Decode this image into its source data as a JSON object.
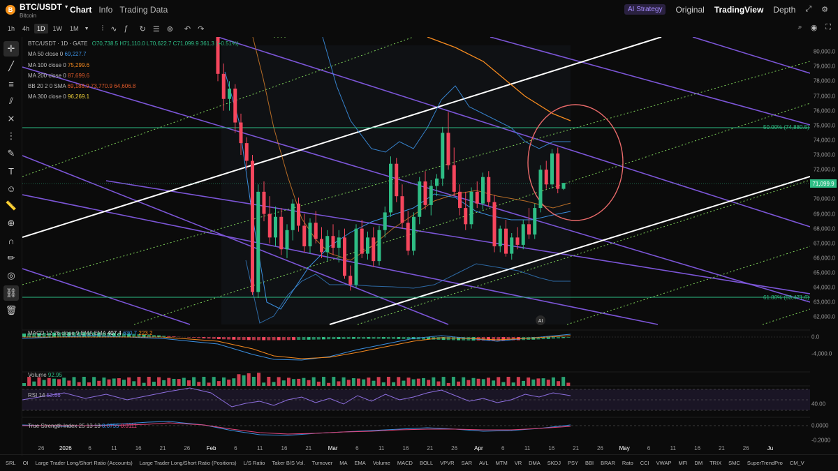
{
  "header": {
    "coin_symbol": "B",
    "pair": "BTC/USDT",
    "pair_sub": "Bitcoin",
    "tabs": [
      "Chart",
      "Info",
      "Trading Data"
    ],
    "ai_strategy": "AI Strategy",
    "right_tabs": [
      "Original",
      "TradingView",
      "Depth"
    ]
  },
  "toolbar": {
    "timeframes": [
      "1h",
      "4h",
      "1D",
      "1W",
      "1M"
    ],
    "active_timeframe": "1D"
  },
  "legend": {
    "ohlc_title": "BTC/USDT · 1D · GATE",
    "ohlc_values": "O70,738.5  H71,110.0  L70,622.7  C71,099.9  361.3 (+0.51%)",
    "lines": [
      {
        "name": "MA 50 close 0",
        "value": "69,227.7",
        "color": "#3b8fe0"
      },
      {
        "name": "MA 100 close 0",
        "value": "75,299.6",
        "color": "#f58a1f"
      },
      {
        "name": "MA 200 close 0",
        "value": "87,699.6",
        "color": "#e05a2a"
      },
      {
        "name": "BB 20 2 0 SMA",
        "value": "69,188.9  73,770.9  64,606.8",
        "color": "#e05a2a"
      },
      {
        "name": "MA 300 close 0",
        "value": "96,269.1",
        "color": "#f2d33a"
      }
    ]
  },
  "price_axis": [
    "80,000.0",
    "79,000.0",
    "78,000.0",
    "77,000.0",
    "76,000.0",
    "75,000.0",
    "74,000.0",
    "73,000.0",
    "72,000.0",
    "71,000.0",
    "70,000.0",
    "69,000.0",
    "68,000.0",
    "67,000.0",
    "66,000.0",
    "65,000.0",
    "64,000.0",
    "63,000.0",
    "62,000.0"
  ],
  "last_price": "71,099.9",
  "fib": {
    "level_50": "50.00% (74,880.5)",
    "level_618": "61.80% (63,471.6)"
  },
  "macd": {
    "label": "MACD 12 26 close 9 EMA EMA",
    "values": [
      "407.4",
      "630.7",
      "223.2"
    ],
    "axis": [
      "0.0",
      "-4,000.0"
    ]
  },
  "volume": {
    "label": "Volume",
    "value": "92.95"
  },
  "rsi": {
    "label": "RSI 14",
    "value": "53.86",
    "axis": [
      "40.00"
    ]
  },
  "tsi": {
    "label": "True Strength Index 25 13 13",
    "values": [
      "0.0755",
      "0.0111"
    ],
    "axis": [
      "0.0000",
      "-0.2000"
    ]
  },
  "time_axis": [
    "26",
    "2026",
    "6",
    "11",
    "16",
    "21",
    "26",
    "Feb",
    "6",
    "11",
    "16",
    "21",
    "Mar",
    "6",
    "11",
    "16",
    "21",
    "26",
    "Apr",
    "6",
    "11",
    "16",
    "21",
    "26",
    "May",
    "6",
    "11",
    "16",
    "21",
    "26",
    "Ju"
  ],
  "bottom_indicators": [
    "SRL",
    "OI",
    "Large Trader Long/Short Ratio (Accounts)",
    "Large Trader Long/Short Ratio (Positions)",
    "L/S Ratio",
    "Taker B/S Vol.",
    "Turnover",
    "MA",
    "EMA",
    "Volume",
    "MACD",
    "BOLL",
    "VPVR",
    "SAR",
    "AVL",
    "MTM",
    "VR",
    "DMA",
    "SKDJ",
    "PSY",
    "BBI",
    "BRAR",
    "Rato",
    "CCI",
    "VWAP",
    "MFI",
    "DM",
    "TRIX",
    "SMC",
    "SuperTrendPro",
    "CM_V"
  ],
  "chart_data": {
    "type": "candlestick",
    "symbol": "BTC/USDT",
    "timeframe": "1D",
    "ylim": [
      61500,
      81000
    ],
    "candles": [
      [
        81000,
        81200,
        78000,
        78500
      ],
      [
        78500,
        79200,
        76000,
        76800
      ],
      [
        76800,
        78000,
        76000,
        77500
      ],
      [
        77500,
        77800,
        74500,
        75200
      ],
      [
        75200,
        75800,
        73000,
        73800
      ],
      [
        73800,
        74200,
        72000,
        72600
      ],
      [
        72600,
        73000,
        63500,
        63700
      ],
      [
        63700,
        71000,
        63300,
        70500
      ],
      [
        70500,
        71200,
        68500,
        69000
      ],
      [
        69000,
        70200,
        67000,
        67400
      ],
      [
        67400,
        69500,
        66800,
        68800
      ],
      [
        68800,
        69400,
        66200,
        66600
      ],
      [
        66600,
        68300,
        66000,
        67900
      ],
      [
        67900,
        70000,
        67200,
        69700
      ],
      [
        69700,
        70100,
        67800,
        68200
      ],
      [
        68200,
        69000,
        66400,
        66800
      ],
      [
        66800,
        68700,
        66300,
        68400
      ],
      [
        68400,
        69200,
        67000,
        67300
      ],
      [
        67300,
        68100,
        66000,
        66400
      ],
      [
        66400,
        67900,
        65800,
        67500
      ],
      [
        67500,
        68300,
        66200,
        66700
      ],
      [
        66700,
        67900,
        65700,
        67400
      ],
      [
        67400,
        68000,
        64600,
        64800
      ],
      [
        64800,
        65500,
        63800,
        64200
      ],
      [
        64200,
        68300,
        64000,
        68000
      ],
      [
        68000,
        68600,
        66000,
        66300
      ],
      [
        66300,
        67800,
        65900,
        67400
      ],
      [
        67400,
        68100,
        65400,
        65800
      ],
      [
        65800,
        68200,
        65500,
        67900
      ],
      [
        67900,
        69500,
        67400,
        69100
      ],
      [
        69100,
        72900,
        68800,
        72400
      ],
      [
        72400,
        72800,
        69800,
        70200
      ],
      [
        70200,
        71000,
        68000,
        68400
      ],
      [
        68400,
        69200,
        66200,
        66500
      ],
      [
        66500,
        69100,
        66200,
        68800
      ],
      [
        68800,
        71500,
        68300,
        71200
      ],
      [
        71200,
        71900,
        69300,
        69600
      ],
      [
        69600,
        71300,
        68900,
        70900
      ],
      [
        70900,
        71700,
        70200,
        71400
      ],
      [
        71400,
        74900,
        70900,
        74500
      ],
      [
        74500,
        75900,
        72000,
        72300
      ],
      [
        72300,
        73500,
        70200,
        70500
      ],
      [
        70500,
        71000,
        68900,
        69400
      ],
      [
        69400,
        70500,
        67900,
        68300
      ],
      [
        68300,
        70800,
        68000,
        70500
      ],
      [
        70500,
        71200,
        69400,
        69700
      ],
      [
        69700,
        71800,
        69300,
        71500
      ],
      [
        71500,
        71900,
        69500,
        69800
      ],
      [
        69800,
        70300,
        66400,
        66800
      ],
      [
        66800,
        68200,
        66400,
        68000
      ],
      [
        68000,
        68600,
        66100,
        66300
      ],
      [
        66300,
        67700,
        65900,
        67400
      ],
      [
        67400,
        68100,
        66600,
        66900
      ],
      [
        66900,
        68600,
        66600,
        68300
      ],
      [
        68300,
        69400,
        67300,
        67600
      ],
      [
        67600,
        69700,
        67300,
        69400
      ],
      [
        69400,
        72300,
        69100,
        72000
      ],
      [
        72000,
        72600,
        70700,
        71000
      ],
      [
        71000,
        73400,
        70700,
        73100
      ],
      [
        73100,
        73500,
        70400,
        70700
      ],
      [
        70700,
        71110,
        70622,
        71100
      ]
    ],
    "price_lines": [
      {
        "name": "50.00%",
        "value": 74880.5
      },
      {
        "name": "61.80%",
        "value": 63471.6
      }
    ]
  }
}
